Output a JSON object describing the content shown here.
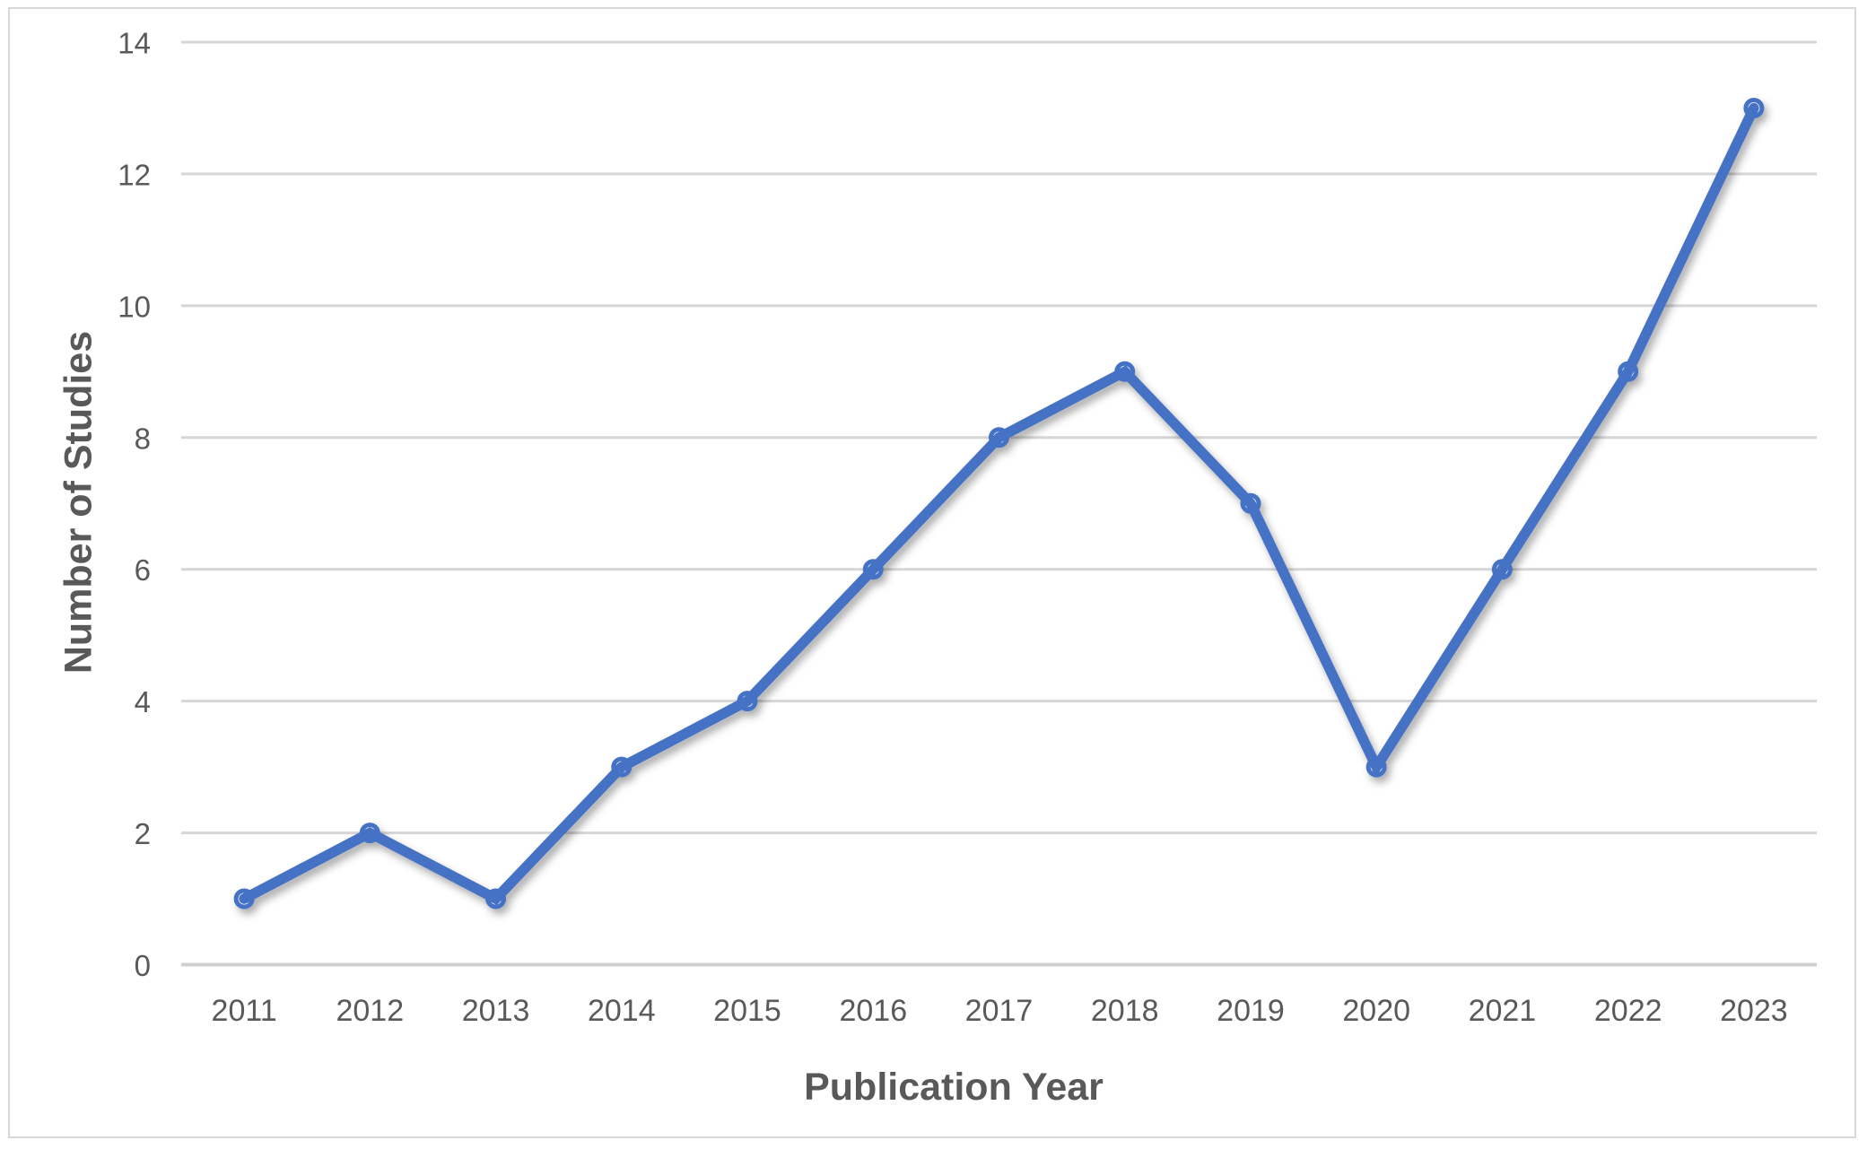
{
  "figure": {
    "background_color": "#ffffff",
    "border_color": "#d8d8d8"
  },
  "chart_data": {
    "type": "line",
    "title": "",
    "xlabel": "Publication Year",
    "ylabel": "Number of Studies",
    "categories": [
      "2011",
      "2012",
      "2013",
      "2014",
      "2015",
      "2016",
      "2017",
      "2018",
      "2019",
      "2020",
      "2021",
      "2022",
      "2023"
    ],
    "series": [
      {
        "name": "Number of Studies",
        "values": [
          1,
          2,
          1,
          3,
          4,
          6,
          8,
          9,
          7,
          3,
          6,
          9,
          13
        ]
      }
    ],
    "ylim": [
      0,
      14
    ],
    "yticks": [
      0,
      2,
      4,
      6,
      8,
      10,
      12,
      14
    ],
    "grid": "horizontal",
    "legend": "none",
    "styles": {
      "line_color": "#4472c4",
      "marker": "open-circle",
      "marker_fill": "#ffffff",
      "gridline_color": "#d6d6d6",
      "baseline_color": "#cfcfcf",
      "tick_label_color": "#595959",
      "axis_title_color": "#595959"
    }
  }
}
